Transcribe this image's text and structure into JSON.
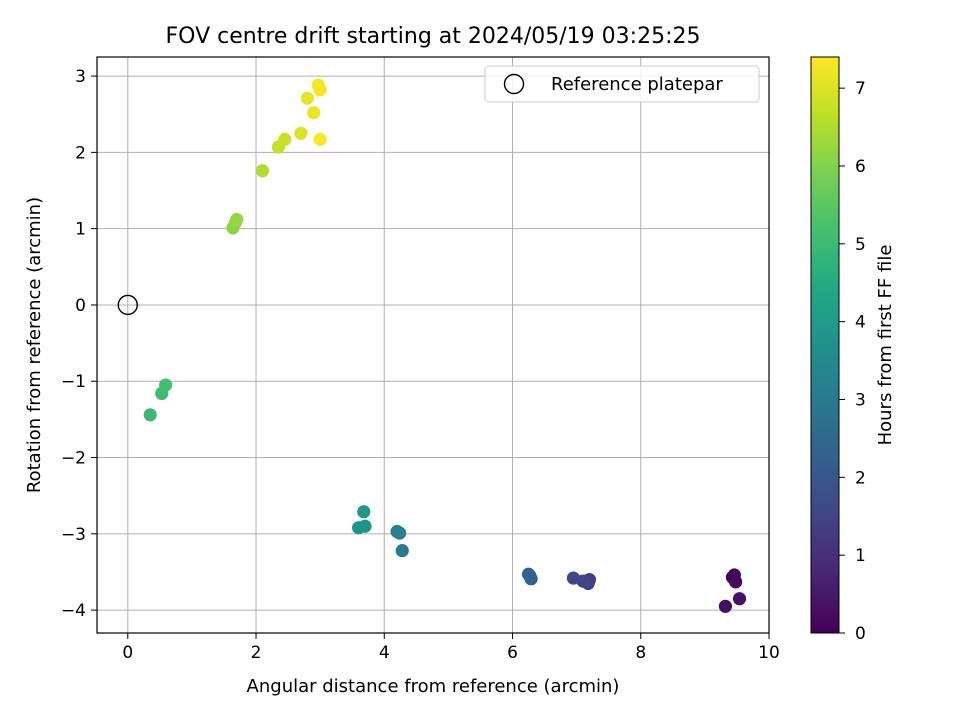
{
  "chart_data": {
    "type": "scatter",
    "title": "FOV centre drift starting at 2024/05/19 03:25:25",
    "xlabel": "Angular distance from reference (arcmin)",
    "ylabel": "Rotation from reference (arcmin)",
    "xlim": [
      -0.48,
      10.0
    ],
    "ylim": [
      -4.3,
      3.25
    ],
    "xticks": [
      0,
      2,
      4,
      6,
      8,
      10
    ],
    "yticks": [
      -4,
      -3,
      -2,
      -1,
      0,
      1,
      2,
      3
    ],
    "xtick_labels": [
      "0",
      "2",
      "4",
      "6",
      "8",
      "10"
    ],
    "ytick_labels": [
      "−4",
      "−3",
      "−2",
      "−1",
      "0",
      "1",
      "2",
      "3"
    ],
    "grid": true,
    "colormap": "viridis",
    "colorbar": {
      "label": "Hours from first FF file",
      "range": [
        0,
        7.4
      ],
      "ticks": [
        0,
        1,
        2,
        3,
        4,
        5,
        6,
        7
      ],
      "tick_labels": [
        "0",
        "1",
        "2",
        "3",
        "4",
        "5",
        "6",
        "7"
      ]
    },
    "legend": {
      "placement": "top-right",
      "entries": [
        "Reference platepar"
      ]
    },
    "reference_point": {
      "x": 0,
      "y": 0
    },
    "series": [
      {
        "points": [
          {
            "x": 9.43,
            "y": -3.57,
            "c": 0.05
          },
          {
            "x": 9.46,
            "y": -3.54,
            "c": 0.12
          },
          {
            "x": 9.48,
            "y": -3.63,
            "c": 0.2
          },
          {
            "x": 9.32,
            "y": -3.95,
            "c": 0.28
          },
          {
            "x": 9.54,
            "y": -3.85,
            "c": 0.35
          },
          {
            "x": 7.2,
            "y": -3.6,
            "c": 1.35
          },
          {
            "x": 7.18,
            "y": -3.65,
            "c": 1.42
          },
          {
            "x": 7.1,
            "y": -3.62,
            "c": 1.5
          },
          {
            "x": 6.95,
            "y": -3.58,
            "c": 1.58
          },
          {
            "x": 6.25,
            "y": -3.53,
            "c": 2.2
          },
          {
            "x": 6.27,
            "y": -3.55,
            "c": 2.28
          },
          {
            "x": 6.29,
            "y": -3.59,
            "c": 2.35
          },
          {
            "x": 4.28,
            "y": -3.22,
            "c": 3.05
          },
          {
            "x": 4.2,
            "y": -2.97,
            "c": 3.12
          },
          {
            "x": 4.24,
            "y": -2.99,
            "c": 3.2
          },
          {
            "x": 3.7,
            "y": -2.9,
            "c": 3.75
          },
          {
            "x": 3.6,
            "y": -2.92,
            "c": 3.82
          },
          {
            "x": 3.68,
            "y": -2.71,
            "c": 3.9
          },
          {
            "x": 0.35,
            "y": -1.44,
            "c": 5.0
          },
          {
            "x": 0.53,
            "y": -1.16,
            "c": 5.08
          },
          {
            "x": 0.59,
            "y": -1.05,
            "c": 5.15
          },
          {
            "x": 1.64,
            "y": 1.01,
            "c": 6.1
          },
          {
            "x": 1.68,
            "y": 1.08,
            "c": 6.17
          },
          {
            "x": 1.7,
            "y": 1.12,
            "c": 6.22
          },
          {
            "x": 2.1,
            "y": 1.76,
            "c": 6.5
          },
          {
            "x": 2.35,
            "y": 2.07,
            "c": 6.72
          },
          {
            "x": 2.45,
            "y": 2.17,
            "c": 6.82
          },
          {
            "x": 2.7,
            "y": 2.25,
            "c": 7.0
          },
          {
            "x": 2.8,
            "y": 2.71,
            "c": 7.12
          },
          {
            "x": 2.9,
            "y": 2.52,
            "c": 7.2
          },
          {
            "x": 2.97,
            "y": 2.88,
            "c": 7.28
          },
          {
            "x": 3.0,
            "y": 2.82,
            "c": 7.32
          },
          {
            "x": 3.0,
            "y": 2.17,
            "c": 7.38
          }
        ]
      }
    ]
  }
}
